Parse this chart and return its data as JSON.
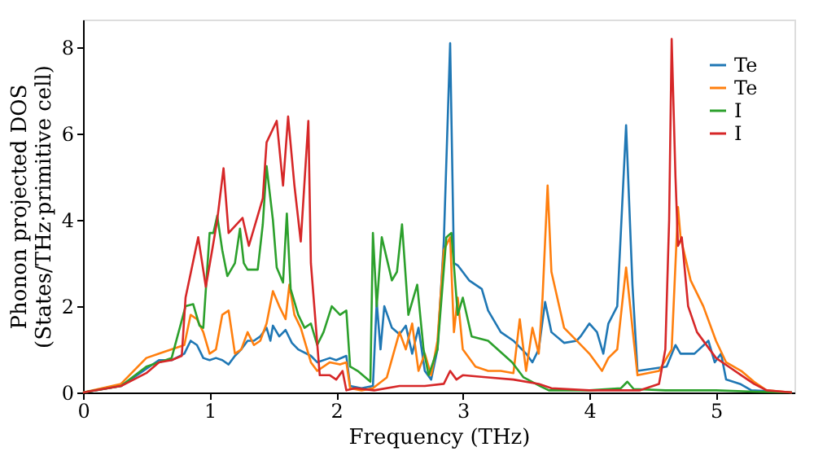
{
  "chart_data": {
    "type": "line",
    "xlabel": "Frequency (THz)",
    "ylabel": "Phonon projected DOS\n(States/THz·primitive cell)",
    "xlim": [
      0,
      5.62
    ],
    "ylim": [
      0,
      8.65
    ],
    "xticks": [
      0,
      1,
      2,
      3,
      4,
      5
    ],
    "yticks": [
      0,
      2,
      4,
      6,
      8
    ],
    "grid": false,
    "legend": "top right",
    "marker": "none",
    "line_style": "solid",
    "series": [
      {
        "name": "Te",
        "color": "#1f77b4",
        "x": [
          0,
          0.3,
          0.5,
          0.6,
          0.7,
          0.8,
          0.85,
          0.9,
          0.95,
          1.0,
          1.05,
          1.1,
          1.15,
          1.2,
          1.25,
          1.3,
          1.35,
          1.4,
          1.45,
          1.48,
          1.5,
          1.55,
          1.6,
          1.65,
          1.7,
          1.8,
          1.85,
          1.95,
          2.0,
          2.08,
          2.11,
          2.2,
          2.29,
          2.32,
          2.35,
          2.38,
          2.44,
          2.5,
          2.55,
          2.6,
          2.65,
          2.7,
          2.75,
          2.8,
          2.85,
          2.9,
          2.93,
          2.96,
          3.05,
          3.15,
          3.2,
          3.3,
          3.4,
          3.5,
          3.55,
          3.6,
          3.65,
          3.7,
          3.8,
          3.9,
          3.93,
          4.0,
          4.06,
          4.11,
          4.15,
          4.22,
          4.29,
          4.34,
          4.38,
          4.61,
          4.68,
          4.72,
          4.83,
          4.94,
          4.99,
          5.04,
          5.08,
          5.19,
          5.28,
          5.6
        ],
        "values": [
          0,
          0.15,
          0.55,
          0.75,
          0.75,
          0.9,
          1.2,
          1.1,
          0.8,
          0.75,
          0.8,
          0.75,
          0.65,
          0.85,
          1.0,
          1.2,
          1.2,
          1.3,
          1.5,
          1.2,
          1.55,
          1.3,
          1.45,
          1.15,
          1.0,
          0.85,
          0.7,
          0.8,
          0.75,
          0.85,
          0.15,
          0.1,
          0.15,
          2.1,
          1.0,
          2.0,
          1.5,
          1.35,
          1.55,
          0.9,
          1.5,
          0.5,
          0.3,
          1.0,
          3.5,
          8.1,
          3.0,
          2.95,
          2.6,
          2.4,
          1.9,
          1.4,
          1.2,
          0.9,
          0.7,
          1.0,
          2.1,
          1.4,
          1.15,
          1.2,
          1.3,
          1.6,
          1.4,
          0.9,
          1.6,
          2.0,
          6.2,
          2.5,
          0.5,
          0.6,
          1.1,
          0.9,
          0.9,
          1.2,
          0.7,
          0.9,
          0.3,
          0.2,
          0.05,
          0
        ]
      },
      {
        "name": "Te",
        "color": "#ff7f0e",
        "x": [
          0,
          0.3,
          0.5,
          0.6,
          0.7,
          0.8,
          0.85,
          0.9,
          0.95,
          1.0,
          1.05,
          1.1,
          1.15,
          1.2,
          1.25,
          1.3,
          1.35,
          1.4,
          1.45,
          1.5,
          1.55,
          1.6,
          1.63,
          1.67,
          1.72,
          1.8,
          1.85,
          1.95,
          2.03,
          2.08,
          2.11,
          2.2,
          2.29,
          2.4,
          2.5,
          2.55,
          2.6,
          2.65,
          2.7,
          2.75,
          2.8,
          2.85,
          2.9,
          2.93,
          2.96,
          3.0,
          3.1,
          3.2,
          3.3,
          3.4,
          3.45,
          3.5,
          3.55,
          3.6,
          3.63,
          3.67,
          3.7,
          3.8,
          3.9,
          4.0,
          4.1,
          4.15,
          4.22,
          4.29,
          4.34,
          4.38,
          4.55,
          4.65,
          4.7,
          4.72,
          4.8,
          4.9,
          5.0,
          5.08,
          5.2,
          5.3,
          5.4,
          5.6
        ],
        "values": [
          0,
          0.2,
          0.8,
          0.9,
          1.0,
          1.1,
          1.8,
          1.7,
          1.4,
          0.9,
          1.0,
          1.8,
          1.9,
          0.9,
          1.0,
          1.4,
          1.1,
          1.2,
          1.6,
          2.35,
          2.0,
          1.7,
          2.5,
          1.8,
          1.5,
          0.7,
          0.5,
          0.7,
          0.65,
          0.7,
          0.1,
          0.05,
          0.1,
          0.35,
          1.4,
          1.0,
          1.6,
          0.5,
          0.9,
          0.4,
          1.2,
          3.3,
          3.6,
          1.4,
          2.2,
          1.0,
          0.6,
          0.5,
          0.5,
          0.45,
          1.7,
          0.5,
          1.5,
          0.9,
          2.2,
          4.8,
          2.8,
          1.5,
          1.2,
          0.9,
          0.5,
          0.8,
          1.0,
          2.9,
          1.5,
          0.4,
          0.5,
          1.0,
          4.3,
          3.6,
          2.6,
          2.0,
          1.2,
          0.7,
          0.5,
          0.25,
          0.05,
          0
        ]
      },
      {
        "name": "I",
        "color": "#2ca02c",
        "x": [
          0,
          0.3,
          0.5,
          0.6,
          0.7,
          0.81,
          0.87,
          0.92,
          0.95,
          1.0,
          1.03,
          1.06,
          1.1,
          1.14,
          1.2,
          1.24,
          1.27,
          1.3,
          1.38,
          1.42,
          1.45,
          1.5,
          1.53,
          1.58,
          1.61,
          1.64,
          1.7,
          1.75,
          1.8,
          1.85,
          1.9,
          1.965,
          2.03,
          2.08,
          2.11,
          2.17,
          2.27,
          2.29,
          2.32,
          2.36,
          2.44,
          2.48,
          2.52,
          2.57,
          2.64,
          2.69,
          2.73,
          2.8,
          2.87,
          2.91,
          2.96,
          3.0,
          3.07,
          3.2,
          3.39,
          3.48,
          3.61,
          3.68,
          4.0,
          4.25,
          4.3,
          4.35,
          4.6,
          5.0,
          5.3,
          5.6
        ],
        "values": [
          0,
          0.15,
          0.6,
          0.7,
          0.8,
          2.0,
          2.05,
          1.55,
          1.5,
          3.7,
          3.7,
          4.1,
          3.3,
          2.7,
          3.0,
          3.8,
          3.0,
          2.85,
          2.85,
          3.9,
          5.25,
          4.0,
          2.9,
          2.55,
          4.15,
          2.4,
          1.8,
          1.5,
          1.6,
          1.1,
          1.4,
          2.0,
          1.8,
          1.9,
          0.6,
          0.5,
          0.25,
          3.7,
          2.0,
          3.6,
          2.6,
          2.8,
          3.9,
          1.8,
          2.5,
          1.0,
          0.4,
          1.0,
          3.6,
          3.7,
          1.8,
          2.2,
          1.3,
          1.2,
          0.7,
          0.35,
          0.15,
          0.05,
          0.05,
          0.1,
          0.25,
          0.08,
          0.05,
          0.05,
          0.02,
          0
        ]
      },
      {
        "name": "I",
        "color": "#d62728",
        "x": [
          0,
          0.3,
          0.5,
          0.6,
          0.7,
          0.78,
          0.81,
          0.91,
          0.97,
          1.02,
          1.06,
          1.11,
          1.15,
          1.26,
          1.31,
          1.42,
          1.45,
          1.53,
          1.58,
          1.62,
          1.67,
          1.72,
          1.78,
          1.8,
          1.87,
          1.95,
          2.0,
          2.05,
          2.08,
          2.15,
          2.3,
          2.5,
          2.7,
          2.85,
          2.9,
          2.95,
          3.0,
          3.2,
          3.4,
          3.6,
          3.7,
          4.0,
          4.4,
          4.55,
          4.6,
          4.63,
          4.65,
          4.68,
          4.7,
          4.73,
          4.78,
          4.85,
          5.0,
          5.1,
          5.2,
          5.3,
          5.4,
          5.6
        ],
        "values": [
          0,
          0.15,
          0.45,
          0.7,
          0.75,
          0.85,
          2.2,
          3.6,
          2.45,
          3.3,
          4.0,
          5.2,
          3.7,
          4.05,
          3.4,
          4.5,
          5.8,
          6.3,
          4.8,
          6.4,
          4.8,
          3.5,
          6.3,
          3.0,
          0.4,
          0.4,
          0.3,
          0.5,
          0.05,
          0.1,
          0.05,
          0.15,
          0.15,
          0.2,
          0.5,
          0.3,
          0.4,
          0.35,
          0.3,
          0.2,
          0.1,
          0.05,
          0.05,
          0.2,
          1.0,
          4.0,
          8.2,
          5.0,
          3.4,
          3.6,
          2.0,
          1.4,
          0.8,
          0.6,
          0.4,
          0.2,
          0.05,
          0
        ]
      }
    ]
  }
}
